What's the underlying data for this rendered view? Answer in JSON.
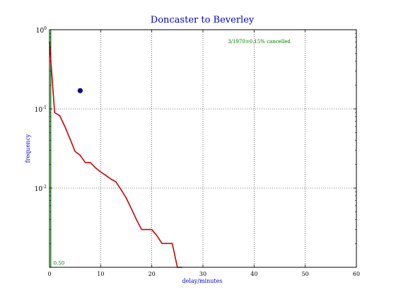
{
  "chart_data": {
    "type": "line",
    "title": "Doncaster to Beverley",
    "xlabel": "delay/minutes",
    "ylabel": "frequency",
    "xlim": [
      0,
      60
    ],
    "ylim": [
      0.001,
      1
    ],
    "y_scale": "log",
    "grid": true,
    "x_ticks": [
      0,
      10,
      20,
      30,
      40,
      50,
      60
    ],
    "x_tick_labels": [
      "0",
      "10",
      "20",
      "30",
      "40",
      "50",
      "60"
    ],
    "y_ticks": [
      1,
      0.1,
      0.01
    ],
    "y_tick_labels": [
      {
        "base": "10",
        "exp": "0"
      },
      {
        "base": "10",
        "exp": "-1"
      },
      {
        "base": "10",
        "exp": "-2"
      }
    ],
    "annotation": {
      "text": "3/1970=0.15% cancelled",
      "x": 41,
      "y": 0.68
    },
    "marker_label": {
      "text": "0.50",
      "x": 0.5,
      "y": 0.00105
    },
    "colors": {
      "series": "#cc0000",
      "vline": "#007700",
      "dot": "#0000cc",
      "title": "#0000cc",
      "annotation": "#007700"
    },
    "series": [
      {
        "values_x": [
          0,
          0.5,
          1,
          2,
          3,
          4,
          5,
          6,
          7,
          8,
          9,
          10,
          11,
          12,
          13,
          14,
          15,
          16,
          17,
          18,
          19,
          20,
          21,
          22,
          23,
          24,
          25,
          26
        ],
        "values_y": [
          0.7,
          0.25,
          0.09,
          0.082,
          0.06,
          0.042,
          0.029,
          0.026,
          0.021,
          0.021,
          0.018,
          0.016,
          0.0145,
          0.013,
          0.012,
          0.0095,
          0.0075,
          0.0055,
          0.004,
          0.003,
          0.003,
          0.003,
          0.0025,
          0.002,
          0.002,
          0.002,
          0.001,
          0.001
        ]
      }
    ],
    "vline": {
      "x": 0.25
    },
    "point": {
      "x": 6,
      "y": 0.17
    }
  }
}
